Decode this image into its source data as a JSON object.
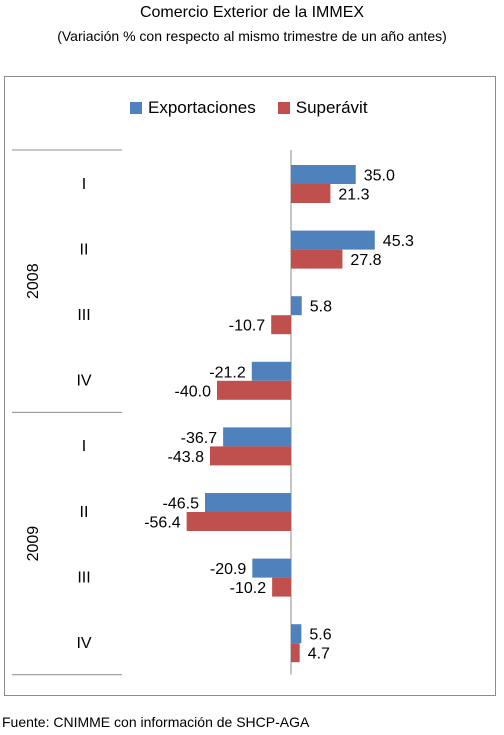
{
  "chart_data": {
    "type": "bar",
    "orientation": "horizontal",
    "title": "Comercio Exterior de la IMMEX",
    "subtitle": "(Variación % con respecto al mismo trimestre de un año antes)",
    "groups": [
      {
        "label": "2008",
        "categories": [
          "I",
          "II",
          "III",
          "IV"
        ]
      },
      {
        "label": "2009",
        "categories": [
          "I",
          "II",
          "III",
          "IV"
        ]
      }
    ],
    "series": [
      {
        "name": "Exportaciones",
        "color": "#4f81bd",
        "values": [
          35.0,
          45.3,
          5.8,
          -21.2,
          -36.7,
          -46.5,
          -20.9,
          5.6
        ],
        "labels": [
          "35.0",
          "45.3",
          "5.8",
          "-21.2",
          "-36.7",
          "-46.5",
          "-20.9",
          "5.6"
        ]
      },
      {
        "name": "Superávit",
        "color": "#c0504d",
        "values": [
          21.3,
          27.8,
          -10.7,
          -40.0,
          -43.8,
          -56.4,
          -10.2,
          4.7
        ],
        "labels": [
          "21.3",
          "27.8",
          "-10.7",
          "-40.0",
          "-43.8",
          "-56.4",
          "-10.2",
          "4.7"
        ]
      }
    ],
    "legend_position": "top",
    "grid": false
  },
  "source": "Fuente: CNIMME con información de SHCP-AGA"
}
